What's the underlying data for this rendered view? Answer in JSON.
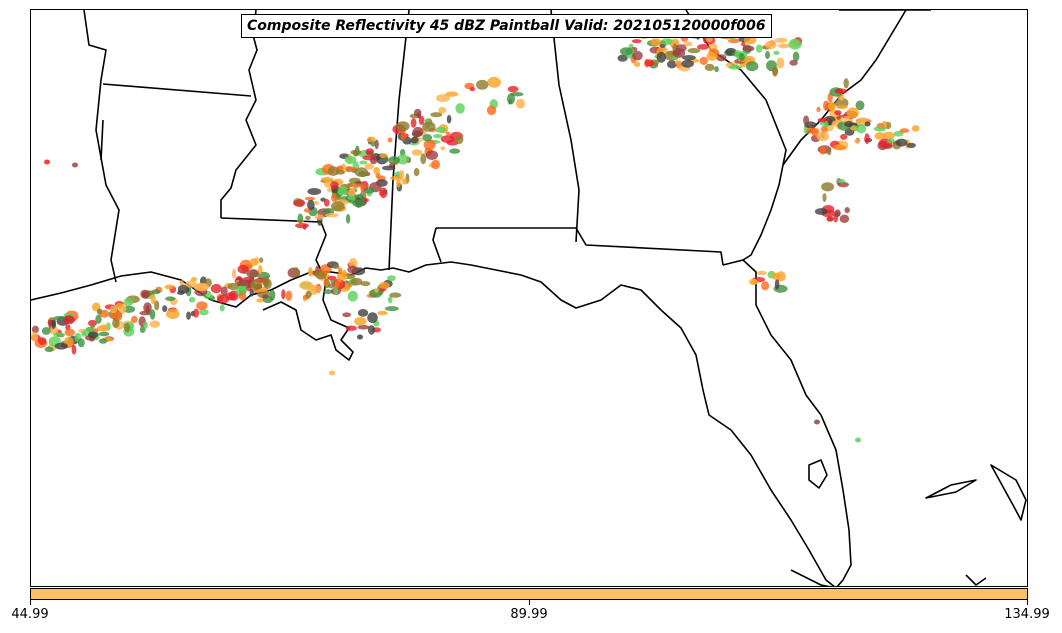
{
  "title": "Composite Reflectivity 45 dBZ Paintball Valid: 202105120000f006",
  "colorbar": {
    "color": "#ffc060",
    "ticks": [
      "44.99",
      "89.99",
      "134.99"
    ]
  },
  "paintball_colors": [
    "#e8202a",
    "#ff6a1a",
    "#ffa020",
    "#5ad25a",
    "#3e8e3e",
    "#8f7a2a",
    "#9e3e3e",
    "#404040",
    "#ffb24a"
  ]
}
